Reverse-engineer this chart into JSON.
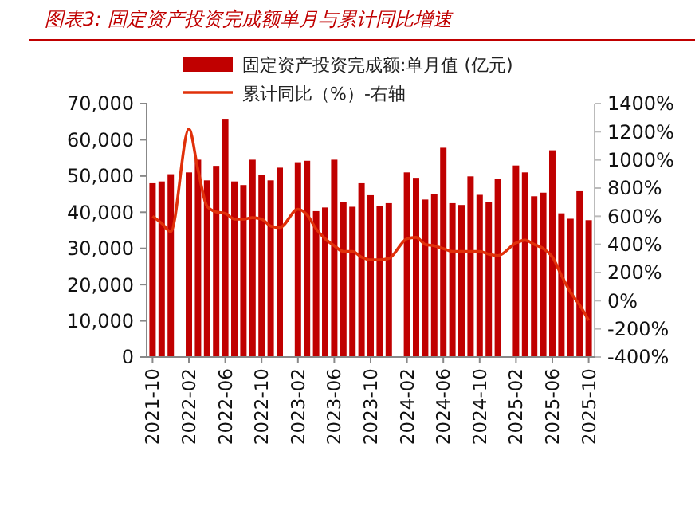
{
  "chart_data": {
    "type": "bar",
    "title": "图表3: 固定资产投资完成额单月与累计同比增速",
    "categories": [
      "2021-10",
      null,
      null,
      null,
      "2022-02",
      null,
      null,
      null,
      "2022-06",
      null,
      null,
      null,
      "2022-10",
      null,
      null,
      null,
      "2023-02",
      null,
      null,
      null,
      "2023-06",
      null,
      null,
      null,
      "2023-10",
      null,
      null,
      null,
      "2024-02",
      null,
      null,
      null,
      "2024-06",
      null,
      null,
      null,
      "2024-10",
      null,
      null,
      null,
      "2025-02",
      null,
      null,
      null,
      "2025-06",
      null,
      null,
      null,
      "2025-10"
    ],
    "series": [
      {
        "name": "固定资产投资完成额:单月值 (亿元)",
        "color": "#c00000",
        "values": [
          48000,
          48500,
          50500,
          null,
          51000,
          54500,
          48800,
          52800,
          65800,
          48500,
          47500,
          54500,
          50300,
          48800,
          52300,
          null,
          53800,
          54200,
          40300,
          41300,
          54500,
          42800,
          41500,
          48000,
          44700,
          41700,
          42500,
          null,
          51000,
          49500,
          43500,
          45100,
          57800,
          42500,
          42000,
          49900,
          44800,
          42900,
          49100,
          null,
          52900,
          51000,
          44400,
          45400,
          57100,
          39700,
          38200,
          45800,
          37800
        ]
      },
      {
        "name": "累计同比（%）-右轴",
        "type": "line",
        "axis": "y2",
        "color": "#e0300a",
        "values": [
          600,
          550,
          490,
          null,
          1220,
          930,
          670,
          630,
          620,
          580,
          580,
          590,
          580,
          530,
          520,
          null,
          650,
          610,
          510,
          440,
          390,
          350,
          350,
          310,
          290,
          290,
          300,
          null,
          440,
          450,
          400,
          390,
          370,
          350,
          350,
          350,
          350,
          330,
          320,
          null,
          410,
          430,
          400,
          370,
          310,
          180,
          60,
          -30,
          -140
        ]
      }
    ],
    "ylim": [
      0,
      70000
    ],
    "yticks": [
      {
        "value": 0,
        "label": "0"
      },
      {
        "value": 10000,
        "label": "10,000"
      },
      {
        "value": 20000,
        "label": "20,000"
      },
      {
        "value": 30000,
        "label": "30,000"
      },
      {
        "value": 40000,
        "label": "40,000"
      },
      {
        "value": 50000,
        "label": "50,000"
      },
      {
        "value": 60000,
        "label": "60,000"
      },
      {
        "value": 70000,
        "label": "70,000"
      }
    ],
    "y2lim": [
      -400,
      1400
    ],
    "y2ticks": [
      {
        "value": -400,
        "label": "-400%"
      },
      {
        "value": -200,
        "label": "-200%"
      },
      {
        "value": 0,
        "label": "0%"
      },
      {
        "value": 200,
        "label": "200%"
      },
      {
        "value": 400,
        "label": "400%"
      },
      {
        "value": 600,
        "label": "600%"
      },
      {
        "value": 800,
        "label": "800%"
      },
      {
        "value": 1000,
        "label": "1000%"
      },
      {
        "value": 1200,
        "label": "1200%"
      },
      {
        "value": 1400,
        "label": "1400%"
      }
    ],
    "legend": "top",
    "grid": false,
    "marker": "none",
    "line_style": "solid"
  }
}
